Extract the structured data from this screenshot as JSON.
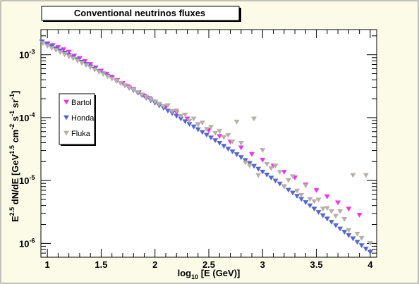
{
  "chart_data": {
    "type": "scatter",
    "title": "Conventional neutrinos fluxes",
    "xlabel": {
      "pre": "log",
      "sub": "10",
      "post": " [E (GeV)]"
    },
    "ylabel": {
      "p1": "E",
      "s1": "2.5",
      "p2": " dN/dE [GeV",
      "s2": "1.5",
      "p3": " cm",
      "s3": "-2",
      "p4": " s",
      "s4": "-1",
      "p5": " sr",
      "s5": "-1",
      "p6": "]"
    },
    "xlim": [
      0.94,
      4.06
    ],
    "ylim_log10": [
      -6.22,
      -2.6
    ],
    "log_y": true,
    "x_tick_labels": [
      {
        "x": 1,
        "label": "1"
      },
      {
        "x": 1.5,
        "label": "1.5"
      },
      {
        "x": 2,
        "label": "2"
      },
      {
        "x": 2.5,
        "label": "2.5"
      },
      {
        "x": 3,
        "label": "3"
      },
      {
        "x": 3.5,
        "label": "3.5"
      },
      {
        "x": 4,
        "label": "4"
      }
    ],
    "y_tick_labels": [
      {
        "exp": -3,
        "label": "10",
        "sup": "-3"
      },
      {
        "exp": -4,
        "label": "10",
        "sup": "-4"
      },
      {
        "exp": -5,
        "label": "10",
        "sup": "-5"
      },
      {
        "exp": -6,
        "label": "10",
        "sup": "-6"
      }
    ],
    "grid": false,
    "legend_placement": "upper-left",
    "series": [
      {
        "name": "Bartol",
        "color": "#ee33ee",
        "x": [
          1.0,
          1.05,
          1.1,
          1.15,
          1.2,
          1.25,
          1.3,
          1.35,
          1.4,
          1.45,
          1.5,
          1.55,
          1.6,
          1.65,
          1.7,
          1.75,
          1.8,
          1.85,
          1.9,
          1.95,
          2.0,
          2.1,
          2.2,
          2.3,
          2.4,
          2.5,
          2.6,
          2.7,
          2.8,
          2.9,
          3.0,
          3.1,
          3.2,
          3.3,
          3.4,
          3.5,
          3.6,
          3.7,
          3.8,
          3.9
        ],
        "y": [
          0.0015,
          0.0014,
          0.0013,
          0.0012,
          0.0011,
          0.00095,
          0.00087,
          0.00078,
          0.0007,
          0.00062,
          0.00055,
          0.00049,
          0.00044,
          0.00039,
          0.00035,
          0.00031,
          0.00028,
          0.00025,
          0.00022,
          0.0002,
          0.000175,
          0.000145,
          0.00012,
          9.5e-05,
          7.7e-05,
          6.2e-05,
          5e-05,
          4.1e-05,
          3.3e-05,
          2.6e-05,
          2.1e-05,
          1.7e-05,
          1.35e-05,
          1.1e-05,
          8.5e-06,
          6.9e-06,
          5.5e-06,
          4.4e-06,
          3.5e-06,
          2.8e-06
        ]
      },
      {
        "name": "Honda",
        "color": "#5566cc",
        "x": [
          0.95,
          1.0,
          1.04,
          1.08,
          1.12,
          1.16,
          1.2,
          1.24,
          1.28,
          1.32,
          1.36,
          1.4,
          1.44,
          1.48,
          1.52,
          1.56,
          1.6,
          1.64,
          1.68,
          1.72,
          1.76,
          1.8,
          1.84,
          1.88,
          1.92,
          1.96,
          2.0,
          2.04,
          2.08,
          2.12,
          2.16,
          2.2,
          2.24,
          2.28,
          2.32,
          2.36,
          2.4,
          2.44,
          2.48,
          2.52,
          2.56,
          2.6,
          2.64,
          2.68,
          2.72,
          2.76,
          2.8,
          2.84,
          2.88,
          2.92,
          2.96,
          3.0,
          3.04,
          3.08,
          3.12,
          3.16,
          3.2,
          3.24,
          3.28,
          3.32,
          3.36,
          3.4,
          3.44,
          3.48,
          3.52,
          3.56,
          3.6,
          3.64,
          3.68,
          3.72,
          3.76,
          3.8,
          3.84,
          3.88,
          3.92,
          3.96,
          4.0
        ],
        "y": [
          0.0016,
          0.00145,
          0.00134,
          0.00124,
          0.00115,
          0.00106,
          0.00098,
          0.0009,
          0.00083,
          0.00076,
          0.0007,
          0.00064,
          0.00059,
          0.00054,
          0.000495,
          0.000455,
          0.000415,
          0.00038,
          0.00035,
          0.00032,
          0.000292,
          0.000267,
          0.000244,
          0.000223,
          0.000203,
          0.000185,
          0.000169,
          0.000154,
          0.00014,
          0.000127,
          0.000116,
          0.000105,
          9.5e-05,
          8.6e-05,
          7.8e-05,
          7.1e-05,
          6.4e-05,
          5.8e-05,
          5.25e-05,
          4.75e-05,
          4.3e-05,
          3.9e-05,
          3.5e-05,
          3.15e-05,
          2.85e-05,
          2.57e-05,
          2.31e-05,
          2.08e-05,
          1.87e-05,
          1.68e-05,
          1.51e-05,
          1.36e-05,
          1.22e-05,
          1.09e-05,
          9.8e-06,
          8.8e-06,
          7.9e-06,
          7e-06,
          6.3e-06,
          5.6e-06,
          5e-06,
          4.45e-06,
          3.95e-06,
          3.5e-06,
          3.1e-06,
          2.75e-06,
          2.44e-06,
          2.16e-06,
          1.91e-06,
          1.69e-06,
          1.5e-06,
          1.33e-06,
          1.18e-06,
          1.04e-06,
          9.2e-07,
          8.1e-07,
          7.2e-07
        ]
      },
      {
        "name": "Fluka",
        "color": "#b8b0a8",
        "x": [
          0.96,
          1.0,
          1.04,
          1.08,
          1.12,
          1.16,
          1.2,
          1.24,
          1.28,
          1.32,
          1.36,
          1.4,
          1.44,
          1.48,
          1.52,
          1.56,
          1.6,
          1.64,
          1.68,
          1.72,
          1.76,
          1.8,
          1.84,
          1.88,
          1.92,
          1.96,
          2.0,
          2.04,
          2.08,
          2.12,
          2.16,
          2.2,
          2.24,
          2.28,
          2.32,
          2.36,
          2.4,
          2.44,
          2.48,
          2.52,
          2.56,
          2.6,
          2.64,
          2.68,
          2.72,
          2.76,
          2.8,
          2.84,
          2.88,
          2.92,
          2.96,
          3.0,
          3.04,
          3.08,
          3.12,
          3.16,
          3.2,
          3.24,
          3.28,
          3.32,
          3.36,
          3.4,
          3.44,
          3.48,
          3.52,
          3.56,
          3.6,
          3.64,
          3.68,
          3.72,
          3.76,
          3.8,
          3.84,
          3.88,
          3.92,
          3.96,
          4.0
        ],
        "y": [
          0.0015,
          0.00136,
          0.00126,
          0.00117,
          0.00108,
          0.001,
          0.00093,
          0.00086,
          0.00079,
          0.00073,
          0.00067,
          0.00062,
          0.00057,
          0.000525,
          0.000485,
          0.000445,
          0.00041,
          0.00038,
          0.00035,
          0.000322,
          0.000297,
          0.000272,
          0.00025,
          0.00023,
          0.00021,
          0.000193,
          0.000178,
          0.000163,
          0.00015,
          0.000155,
          0.000125,
          0.000128,
          0.000105,
          0.00011,
          8.8e-05,
          9.5e-05,
          7.6e-05,
          8.2e-05,
          6.5e-05,
          7e-05,
          5.6e-05,
          6e-05,
          4.8e-05,
          5.2e-05,
          4.1e-05,
          8.5e-05,
          3.9e-05,
          1.9e-05,
          1.7e-05,
          9.5e-05,
          1.2e-05,
          3e-05,
          1.8e-05,
          1.55e-05,
          1.7e-05,
          1.35e-05,
          8e-06,
          1e-05,
          1.15e-05,
          6.8e-06,
          5.8e-06,
          8.2e-06,
          5e-06,
          4.6e-06,
          4.9e-06,
          3.5e-06,
          3.6e-06,
          3.2e-06,
          2.7e-06,
          3.2e-06,
          2.4e-06,
          1.6e-06,
          1.2e-05,
          1.4e-06,
          1.2e-06,
          1.2e-05,
          1e-06
        ]
      }
    ]
  }
}
